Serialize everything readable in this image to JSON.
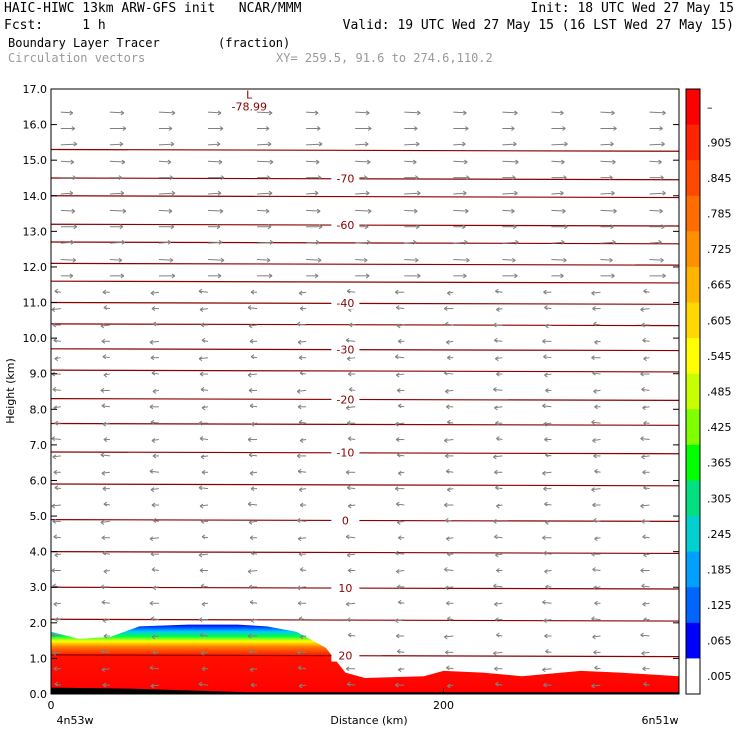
{
  "header": {
    "line1_left": "HAIC-HIWC 13km ARW-GFS init   NCAR/MMM",
    "line1_right": "Init: 18 UTC Wed 27 May 15",
    "line2_left": "Fcst:     1 h",
    "line2_right": "Valid: 19 UTC Wed 27 May 15 (16 LST Wed 27 May 15)",
    "line3_left": "Boundary Layer Tracer",
    "line3_units": "(fraction)",
    "line4_left": "Circulation vectors",
    "line4_xy": "XY= 259.5, 91.6 to 274.6,110.2"
  },
  "colors": {
    "isotherm": "#8b0000",
    "vector": "#808080",
    "terrain": "#000000"
  },
  "chart_data": {
    "type": "heatmap",
    "ylabel": "Height (km)",
    "xlabel": "Distance (km)",
    "x_left_label": "4n53w",
    "x_right_label": "6n51w",
    "x_range": [
      0,
      320
    ],
    "x_ticks": [
      "0",
      "200"
    ],
    "x_tick_values": [
      0,
      200
    ],
    "y_range": [
      0,
      17
    ],
    "y_ticks": [
      "0.0",
      "1.0",
      "2.0",
      "3.0",
      "4.0",
      "5.0",
      "6.0",
      "7.0",
      "8.0",
      "9.0",
      "10.0",
      "11.0",
      "12.0",
      "13.0",
      "14.0",
      "15.0",
      "16.0",
      "17.0"
    ],
    "y_tick_values": [
      0,
      1,
      2,
      3,
      4,
      5,
      6,
      7,
      8,
      9,
      10,
      11,
      12,
      13,
      14,
      15,
      16,
      17
    ],
    "tracer_top": [
      {
        "x": 0,
        "y": 1.75
      },
      {
        "x": 14,
        "y": 1.55
      },
      {
        "x": 30,
        "y": 1.6
      },
      {
        "x": 45,
        "y": 1.9
      },
      {
        "x": 70,
        "y": 1.95
      },
      {
        "x": 95,
        "y": 1.95
      },
      {
        "x": 110,
        "y": 1.9
      },
      {
        "x": 125,
        "y": 1.75
      },
      {
        "x": 140,
        "y": 1.3
      },
      {
        "x": 150,
        "y": 0.6
      },
      {
        "x": 160,
        "y": 0.45
      },
      {
        "x": 190,
        "y": 0.5
      },
      {
        "x": 200,
        "y": 0.65
      },
      {
        "x": 220,
        "y": 0.6
      },
      {
        "x": 240,
        "y": 0.5
      },
      {
        "x": 270,
        "y": 0.65
      },
      {
        "x": 290,
        "y": 0.6
      },
      {
        "x": 320,
        "y": 0.5
      }
    ],
    "terrain_top": [
      {
        "x": 0,
        "y": 0.18
      },
      {
        "x": 40,
        "y": 0.15
      },
      {
        "x": 100,
        "y": 0.05
      },
      {
        "x": 140,
        "y": 0.05
      },
      {
        "x": 320,
        "y": 0.05
      }
    ],
    "isotherms": [
      {
        "label": "-70",
        "y": 14.5
      },
      {
        "label": "-60",
        "y": 13.2
      },
      {
        "label": "-40",
        "y": 11.0
      },
      {
        "label": "-30",
        "y": 9.7
      },
      {
        "label": "-20",
        "y": 8.3
      },
      {
        "label": "-10",
        "y": 6.8
      },
      {
        "label": "0",
        "y": 4.9
      },
      {
        "label": "10",
        "y": 3.0
      },
      {
        "label": "20",
        "y": 1.1
      }
    ],
    "extra_isotherm_heights": [
      15.3,
      14.0,
      12.7,
      12.1,
      11.6,
      10.4,
      9.1,
      7.6,
      5.9,
      4.0,
      2.1
    ],
    "min_label": {
      "marker": "L",
      "value": "-78.99",
      "x": 100,
      "y": 16.9
    },
    "colorbar": {
      "ticks": [
        "–",
        ".905",
        ".845",
        ".785",
        ".725",
        ".665",
        ".605",
        ".545",
        ".485",
        ".425",
        ".365",
        ".305",
        ".245",
        ".185",
        ".125",
        ".065",
        ".005"
      ],
      "colors": [
        "#ff0000",
        "#ff2400",
        "#ff4800",
        "#ff6c00",
        "#ff9000",
        "#ffb400",
        "#ffd800",
        "#ffff00",
        "#c8ff00",
        "#80ff00",
        "#00ff00",
        "#00e080",
        "#00d0d0",
        "#00a0ff",
        "#0064ff",
        "#0000ff",
        "#ffffff"
      ]
    }
  }
}
